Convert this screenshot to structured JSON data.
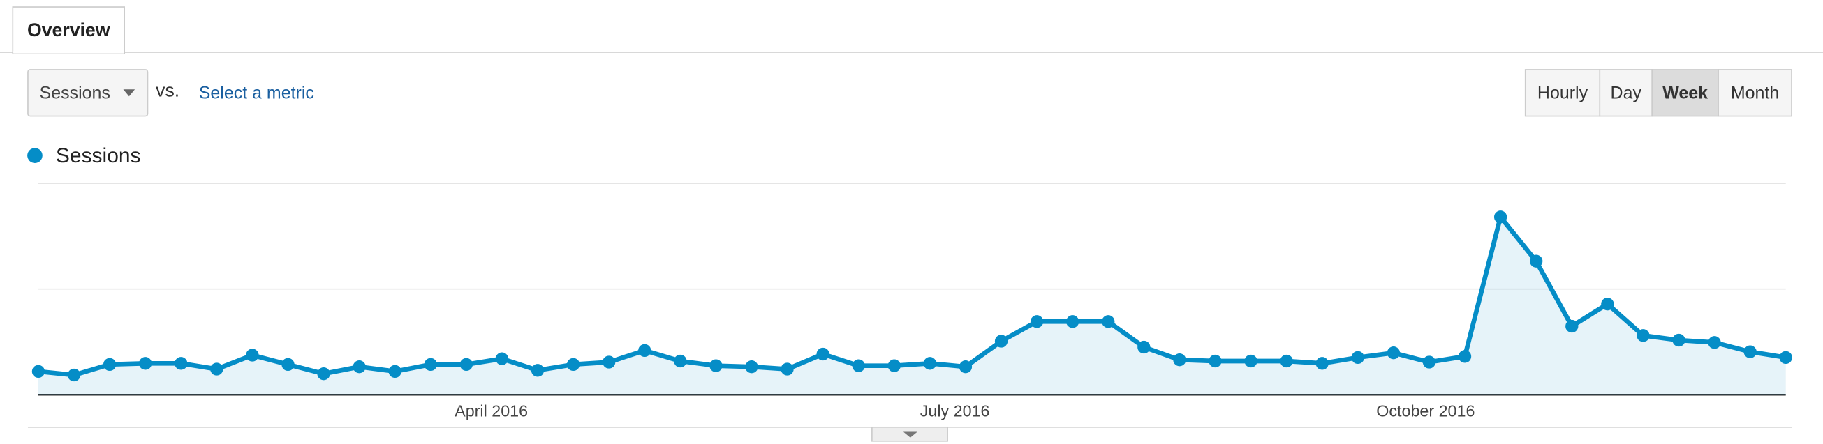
{
  "tab": "Overview",
  "metric": "Sessions",
  "vs": "vs.",
  "compare_link": "Select a metric",
  "buttons": [
    {
      "label": "Hourly",
      "active": false
    },
    {
      "label": "Day",
      "active": false
    },
    {
      "label": "Week",
      "active": true
    },
    {
      "label": "Month",
      "active": false
    }
  ],
  "chart_data": {
    "type": "line",
    "series": [
      {
        "name": "Sessions",
        "color": "#058dc7",
        "values": [
          11.0,
          9.3,
          14.3,
          14.8,
          14.8,
          12.1,
          18.7,
          14.3,
          9.9,
          13.2,
          11.0,
          14.3,
          14.3,
          17.0,
          11.5,
          14.3,
          15.4,
          20.9,
          15.9,
          13.7,
          13.2,
          12.1,
          19.2,
          13.7,
          13.7,
          14.8,
          13.2,
          25.3,
          34.6,
          34.6,
          34.6,
          22.5,
          16.5,
          15.9,
          15.9,
          15.9,
          14.8,
          17.6,
          19.8,
          15.4,
          18.1,
          84.1,
          63.2,
          32.4,
          42.9,
          28.0,
          25.8,
          24.7,
          20.3,
          17.6
        ]
      }
    ],
    "xlim": [
      0,
      49
    ],
    "xticks": [
      {
        "value": 12.7,
        "label": "April 2016"
      },
      {
        "value": 25.7,
        "label": "July 2016"
      },
      {
        "value": 38.9,
        "label": "October 2016"
      }
    ],
    "ylim": [
      0,
      100
    ],
    "yticks": [
      0,
      50,
      100
    ],
    "grid": true,
    "fill_area": true
  }
}
